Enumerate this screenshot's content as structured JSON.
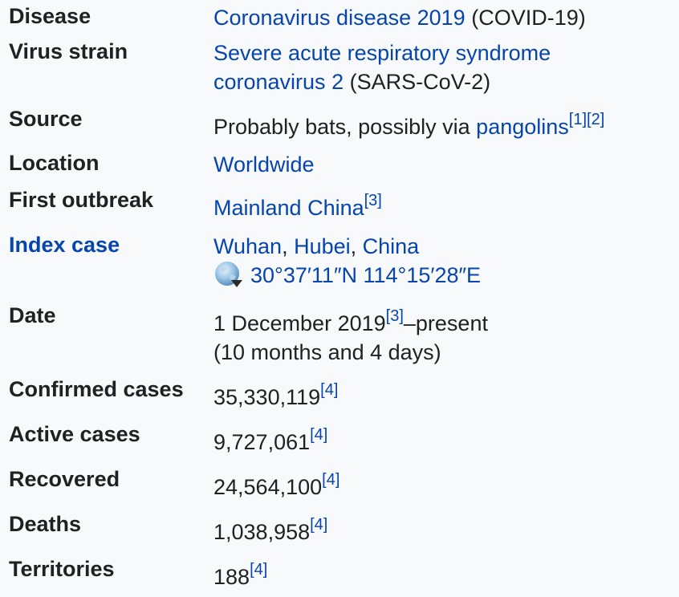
{
  "rows": [
    {
      "label": "Disease",
      "value_link": "Coronavirus disease 2019",
      "value_text": " (COVID-19)"
    },
    {
      "label": "Virus strain",
      "value_link_1": "Severe acute respiratory syndrome",
      "value_link_2": "coronavirus 2",
      "value_text": " (SARS-CoV-2)"
    },
    {
      "label": "Source",
      "value_text": "Probably bats, possibly via ",
      "value_link": "pangolins",
      "refs": [
        "[1]",
        "[2]"
      ]
    },
    {
      "label": "Location",
      "value_link": "Worldwide"
    },
    {
      "label": "First outbreak",
      "value_link": "Mainland China",
      "refs": [
        "[3]"
      ]
    },
    {
      "label": "Index case",
      "value_links": [
        "Wuhan",
        "Hubei",
        "China"
      ],
      "separator": ", ",
      "coordinates": "30°37′11″N 114°15′28″E",
      "globe_icon": "globe-icon"
    },
    {
      "label": "Date",
      "value_text": "1 December 2019",
      "refs": [
        "[3]"
      ],
      "value_suffix": "–present",
      "value_line2": "(10 months and 4 days)"
    },
    {
      "label": "Confirmed cases",
      "value_text": "35,330,119",
      "refs": [
        "[4]"
      ]
    },
    {
      "label": "Active cases",
      "value_text": "9,727,061",
      "refs": [
        "[4]"
      ]
    },
    {
      "label": "Recovered",
      "value_text": "24,564,100",
      "refs": [
        "[4]"
      ]
    },
    {
      "label": "Deaths",
      "value_text": "1,038,958",
      "refs": [
        "[4]"
      ]
    },
    {
      "label": "Territories",
      "value_text": "188",
      "refs": [
        "[4]"
      ]
    }
  ],
  "colors": {
    "background": "#f8f9fa",
    "text": "#202122",
    "link": "#0645ad"
  }
}
